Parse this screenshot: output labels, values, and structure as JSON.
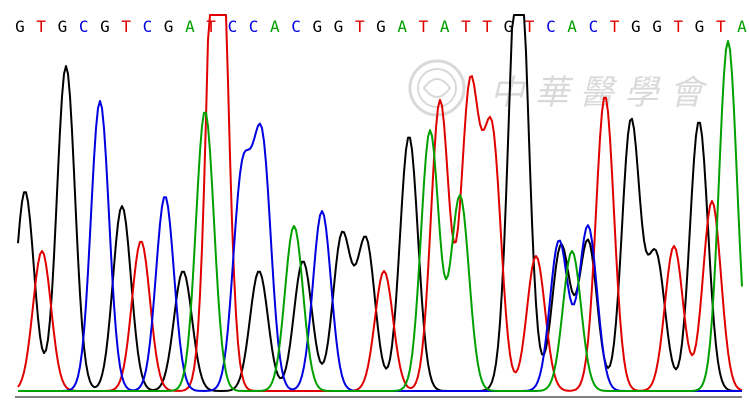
{
  "chart_data": {
    "type": "line",
    "base_calls": [
      "G",
      "T",
      "G",
      "C",
      "G",
      "T",
      "C",
      "G",
      "A",
      "T",
      "C",
      "C",
      "A",
      "C",
      "G",
      "G",
      "T",
      "G",
      "A",
      "T",
      "A",
      "T",
      "T",
      "G",
      "T",
      "C",
      "A",
      "C",
      "T",
      "G",
      "G",
      "T",
      "G",
      "T",
      "A"
    ],
    "colors": {
      "A": "#00a000",
      "C": "#0000e0",
      "G": "#000000",
      "T": "#e00000"
    },
    "series": [
      {
        "base": "G",
        "peaks": [
          [
            25,
            200
          ],
          [
            66,
            325
          ],
          [
            122,
            185
          ],
          [
            183,
            120
          ],
          [
            259,
            120
          ],
          [
            303,
            130
          ],
          [
            342,
            155
          ],
          [
            366,
            150
          ],
          [
            409,
            255
          ],
          [
            515,
            200
          ],
          [
            521,
            285
          ],
          [
            561,
            145
          ],
          [
            588,
            150
          ],
          [
            631,
            270
          ],
          [
            656,
            135
          ],
          [
            699,
            270
          ]
        ]
      },
      {
        "base": "T",
        "peaks": [
          [
            42,
            140
          ],
          [
            141,
            150
          ],
          [
            216,
            310
          ],
          [
            219,
            300
          ],
          [
            384,
            120
          ],
          [
            440,
            290
          ],
          [
            470,
            300
          ],
          [
            492,
            255
          ],
          [
            536,
            135
          ],
          [
            605,
            295
          ],
          [
            674,
            145
          ],
          [
            712,
            190
          ]
        ]
      },
      {
        "base": "C",
        "peaks": [
          [
            100,
            290
          ],
          [
            165,
            195
          ],
          [
            242,
            210
          ],
          [
            262,
            245
          ],
          [
            322,
            180
          ],
          [
            559,
            150
          ],
          [
            588,
            165
          ]
        ]
      },
      {
        "base": "A",
        "peaks": [
          [
            205,
            280
          ],
          [
            294,
            165
          ],
          [
            430,
            260
          ],
          [
            460,
            195
          ],
          [
            572,
            140
          ],
          [
            728,
            350
          ]
        ]
      }
    ]
  },
  "watermark": {
    "text": "中 華 醫 學 會"
  }
}
